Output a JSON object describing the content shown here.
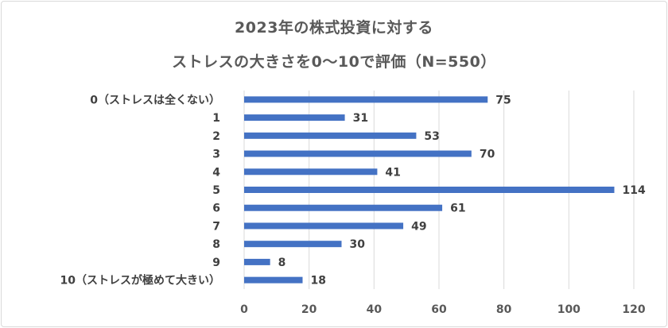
{
  "chart_data": {
    "type": "bar",
    "orientation": "horizontal",
    "title_lines": [
      "2023年の株式投資に対する",
      "ストレスの大きさを0～10で評価（N=550）"
    ],
    "categories": [
      "0（ストレスは全くない）",
      "1",
      "2",
      "3",
      "4",
      "5",
      "6",
      "7",
      "8",
      "9",
      "10（ストレスが極めて大きい）"
    ],
    "values": [
      75,
      31,
      53,
      70,
      41,
      114,
      61,
      49,
      30,
      8,
      18
    ],
    "xlim": [
      0,
      120
    ],
    "xticks": [
      "0",
      "20",
      "40",
      "60",
      "80",
      "100",
      "120"
    ],
    "grid": true,
    "bar_color": "#4472c4",
    "grid_color": "#d9d9d9"
  }
}
